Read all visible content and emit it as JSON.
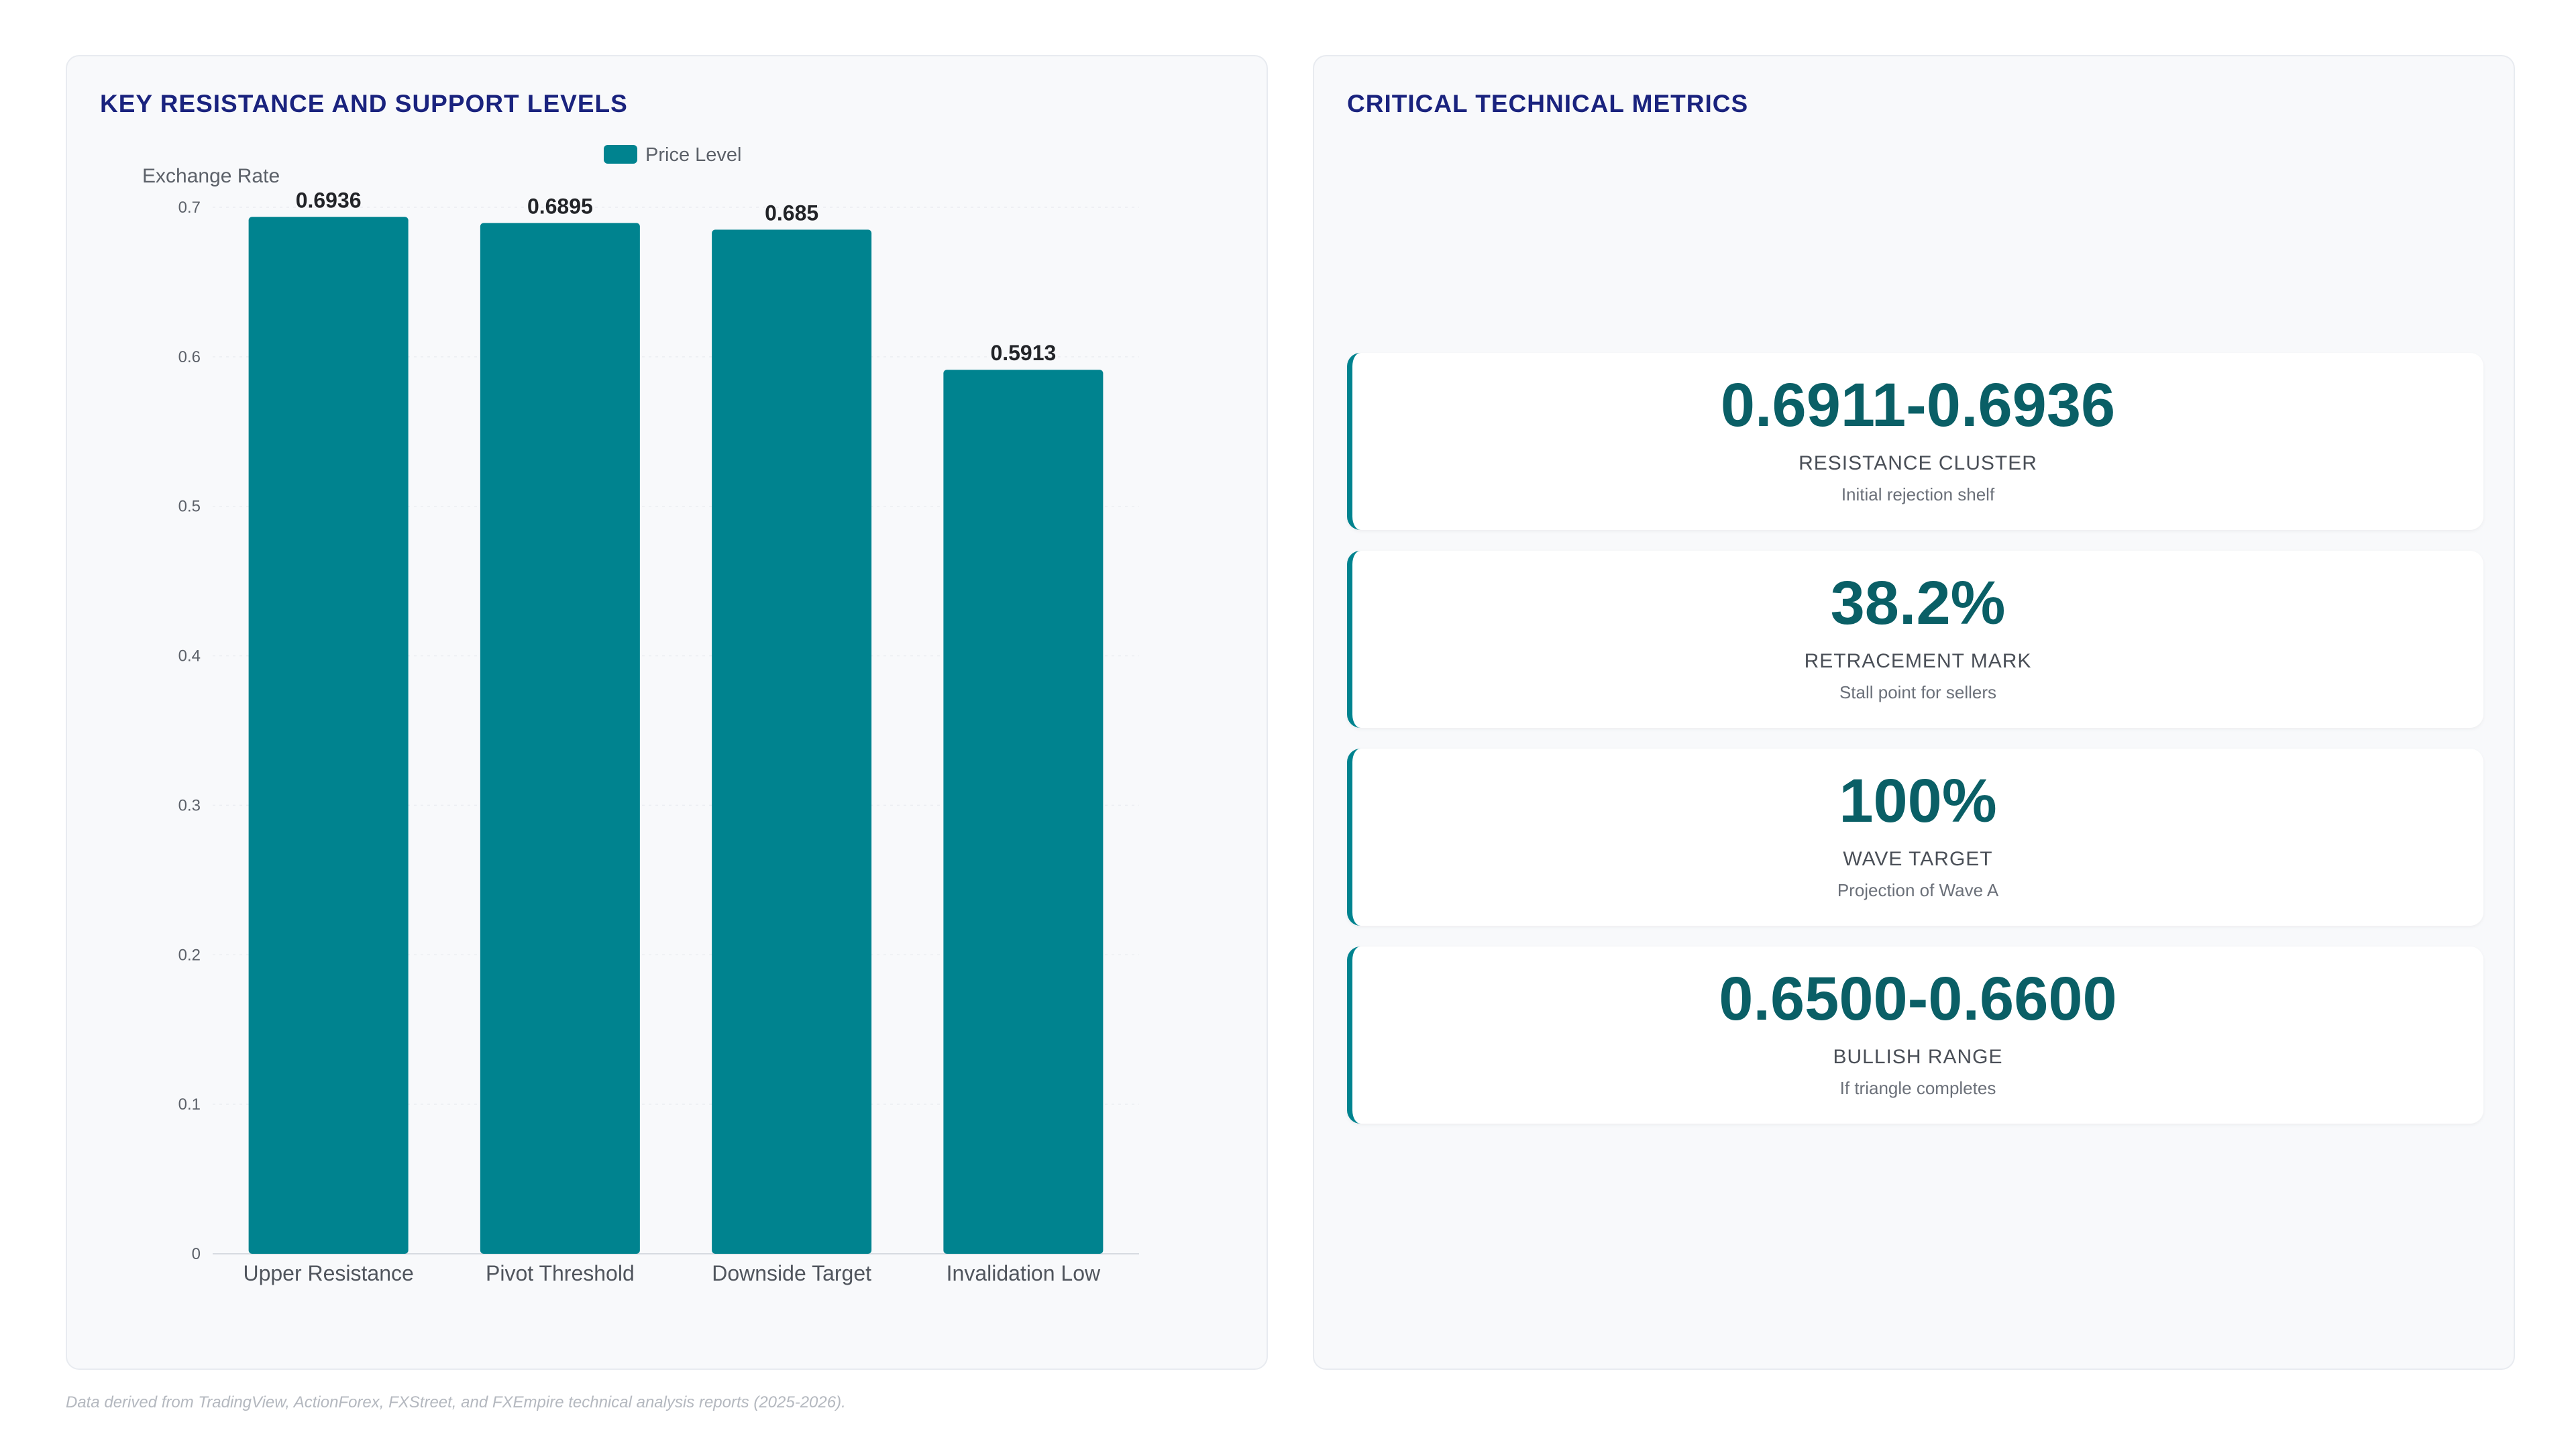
{
  "left_panel": {
    "title": "KEY RESISTANCE AND SUPPORT LEVELS"
  },
  "right_panel": {
    "title": "CRITICAL TECHNICAL METRICS"
  },
  "chart_data": {
    "type": "bar",
    "title": "KEY RESISTANCE AND SUPPORT LEVELS",
    "categories": [
      "Upper Resistance",
      "Pivot Threshold",
      "Downside Target",
      "Invalidation Low"
    ],
    "series": [
      {
        "name": "Price Level",
        "values": [
          0.6936,
          0.6895,
          0.685,
          0.5913
        ]
      }
    ],
    "value_labels": [
      "0.6936",
      "0.6895",
      "0.685",
      "0.5913"
    ],
    "xlabel": "",
    "ylabel": "Exchange Rate",
    "ylim": [
      0,
      0.7
    ],
    "yticks": [
      "0",
      "0.1",
      "0.2",
      "0.3",
      "0.4",
      "0.5",
      "0.6",
      "0.7"
    ],
    "grid": true,
    "legend_position": "top-center",
    "bar_color": "#00838f"
  },
  "metrics": [
    {
      "value": "0.6911-0.6936",
      "label": "RESISTANCE CLUSTER",
      "sub": "Initial rejection shelf"
    },
    {
      "value": "38.2%",
      "label": "RETRACEMENT MARK",
      "sub": "Stall point for sellers"
    },
    {
      "value": "100%",
      "label": "WAVE TARGET",
      "sub": "Projection of Wave A"
    },
    {
      "value": "0.6500-0.6600",
      "label": "BULLISH RANGE",
      "sub": "If triangle completes"
    }
  ],
  "footer": {
    "note": "Data derived from TradingView, ActionForex, FXStreet, and FXEmpire technical analysis reports (2025-2026)."
  },
  "colors": {
    "accent": "#00838f",
    "title": "#1a237e",
    "metric_value": "#0a5f66"
  }
}
